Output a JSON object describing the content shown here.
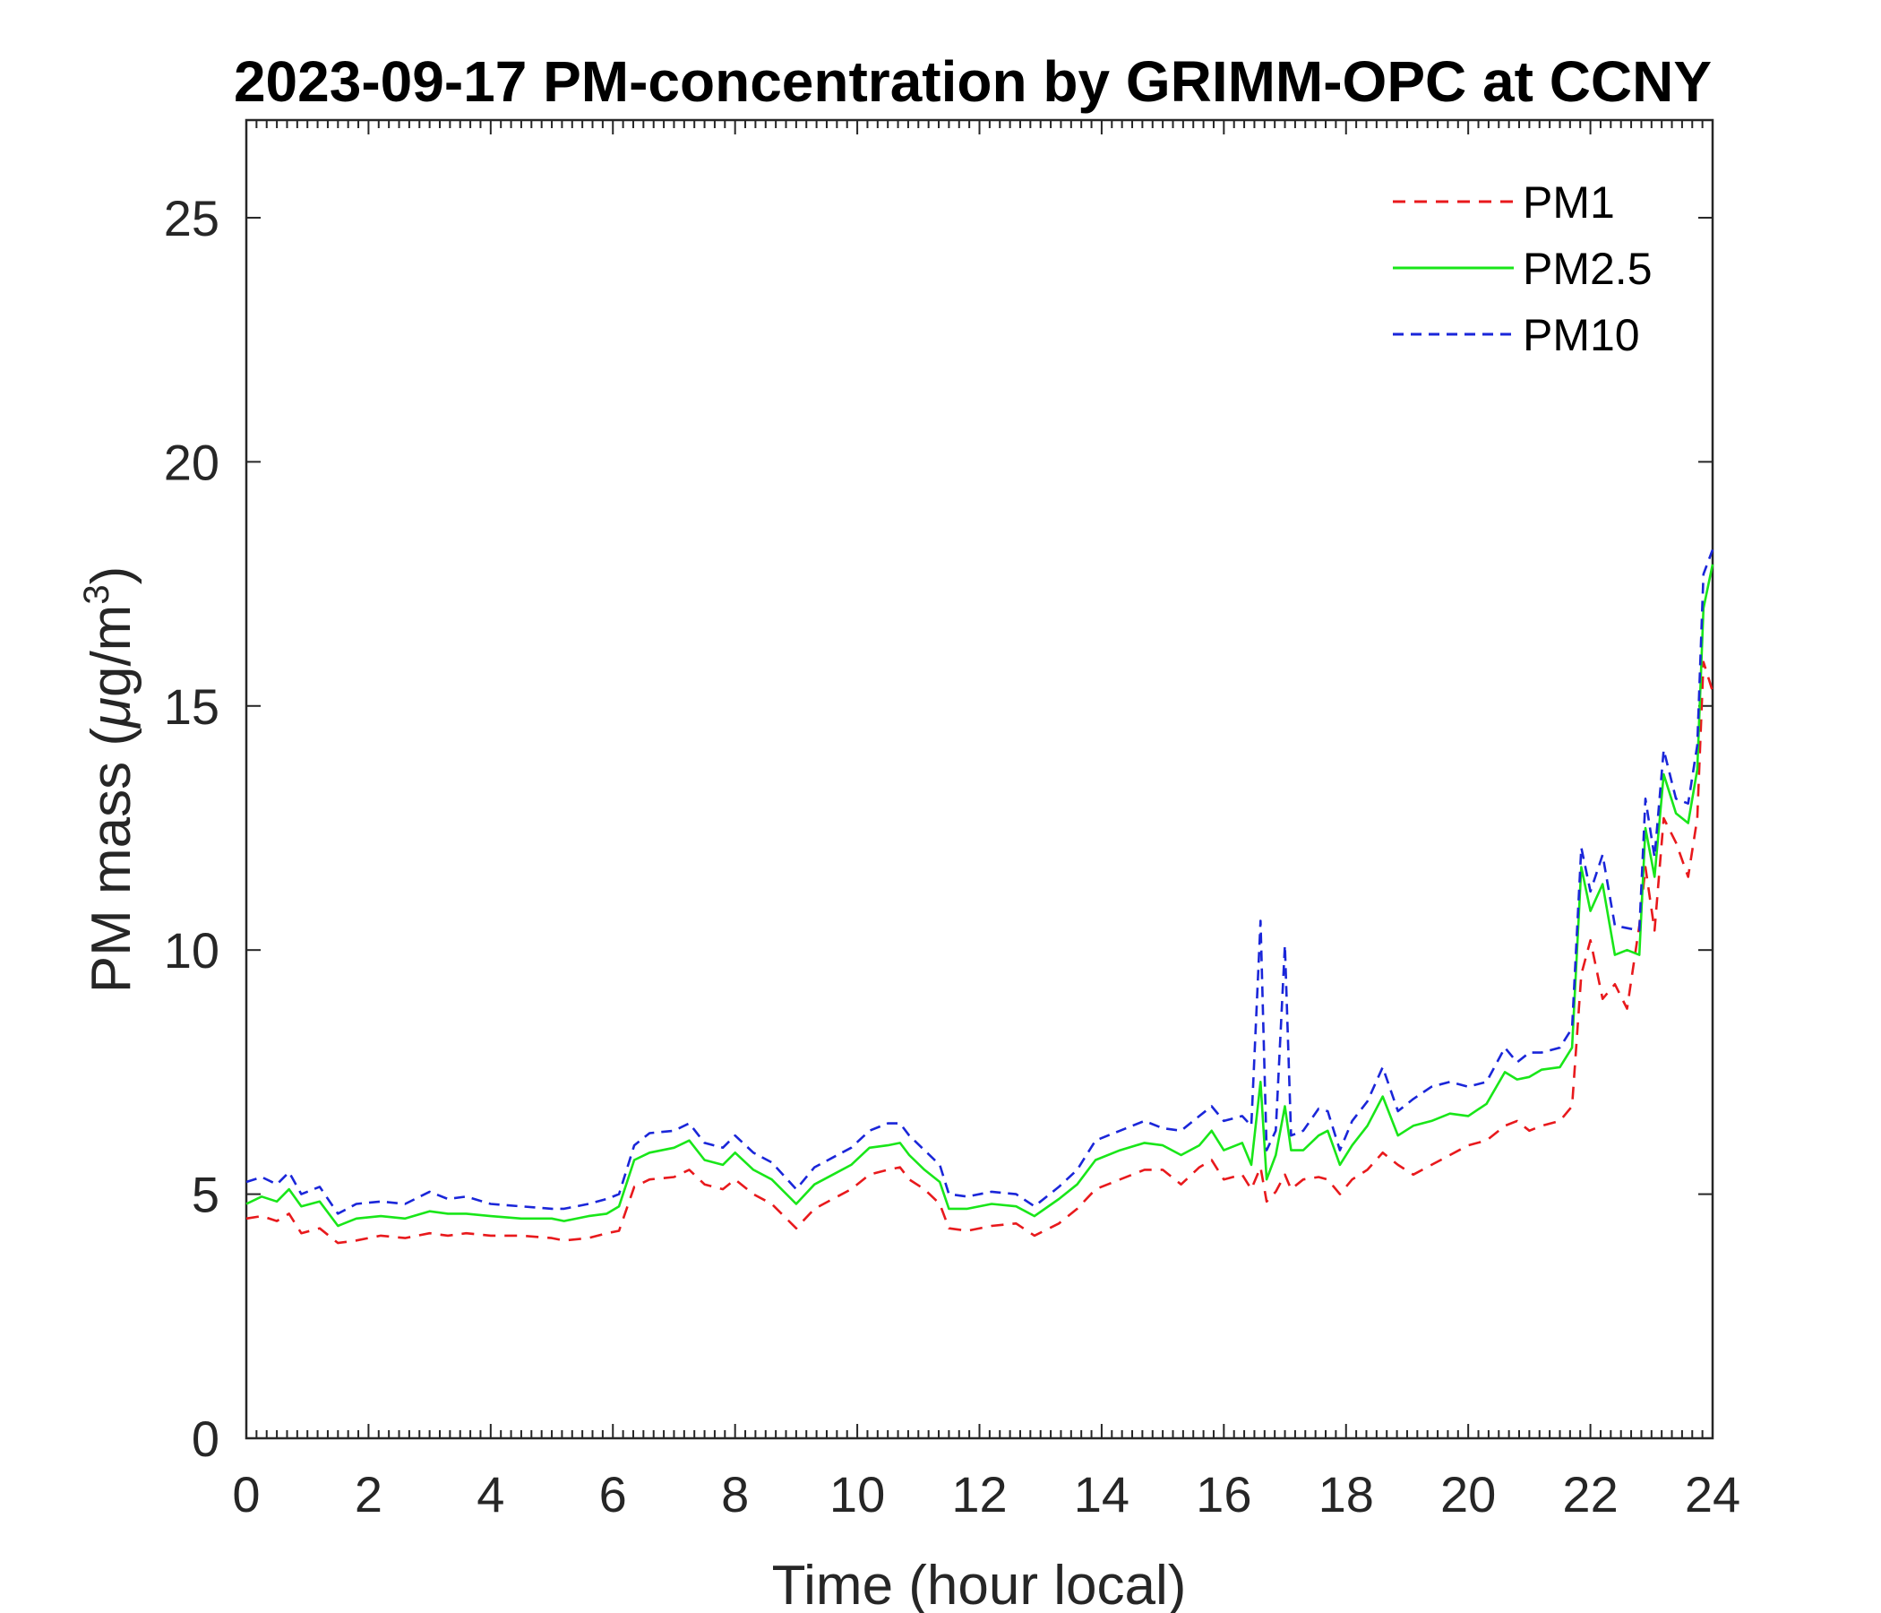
{
  "chart_data": {
    "type": "line",
    "title": "2023-09-17 PM-concentration by GRIMM-OPC at CCNY",
    "xlabel": "Time (hour local)",
    "ylabel_prefix": "PM mass (",
    "ylabel_mu": "μ",
    "ylabel_unit": "g/m",
    "ylabel_sup": "3",
    "ylabel_suffix": ")",
    "xlim": [
      0,
      24
    ],
    "ylim": [
      0,
      27
    ],
    "xticks": [
      0,
      2,
      4,
      6,
      8,
      10,
      12,
      14,
      16,
      18,
      20,
      22,
      24
    ],
    "xtick_labels": [
      "0",
      "2",
      "4",
      "6",
      "8",
      "10",
      "12",
      "14",
      "16",
      "18",
      "20",
      "22",
      "24"
    ],
    "yticks": [
      0,
      5,
      10,
      15,
      20,
      25
    ],
    "ytick_labels": [
      "0",
      "5",
      "10",
      "15",
      "20",
      "25"
    ],
    "grid": false,
    "legend_position": "top-right",
    "x": [
      0.0,
      0.25,
      0.5,
      0.7,
      0.9,
      1.2,
      1.5,
      1.8,
      2.2,
      2.6,
      3.0,
      3.3,
      3.6,
      4.0,
      4.5,
      5.0,
      5.2,
      5.6,
      5.9,
      6.1,
      6.35,
      6.6,
      7.0,
      7.25,
      7.5,
      7.8,
      8.0,
      8.3,
      8.6,
      9.0,
      9.3,
      9.6,
      9.9,
      10.2,
      10.5,
      10.7,
      10.85,
      11.1,
      11.35,
      11.5,
      11.8,
      12.2,
      12.6,
      12.9,
      13.3,
      13.6,
      13.9,
      14.3,
      14.7,
      15.0,
      15.3,
      15.6,
      15.8,
      16.0,
      16.3,
      16.45,
      16.6,
      16.7,
      16.85,
      17.0,
      17.1,
      17.3,
      17.55,
      17.7,
      17.9,
      18.1,
      18.35,
      18.6,
      18.85,
      19.1,
      19.4,
      19.7,
      20.0,
      20.3,
      20.6,
      20.8,
      21.0,
      21.2,
      21.5,
      21.7,
      21.85,
      22.0,
      22.2,
      22.4,
      22.6,
      22.8,
      22.9,
      23.05,
      23.2,
      23.4,
      23.6,
      23.75,
      23.85,
      24.0
    ],
    "series": [
      {
        "name": "PM1",
        "color": "#e8191c",
        "dash": "14,10",
        "values": [
          4.5,
          4.55,
          4.45,
          4.6,
          4.2,
          4.3,
          4.0,
          4.05,
          4.15,
          4.1,
          4.2,
          4.15,
          4.2,
          4.15,
          4.15,
          4.1,
          4.05,
          4.1,
          4.2,
          4.25,
          5.15,
          5.3,
          5.35,
          5.5,
          5.2,
          5.1,
          5.3,
          5.0,
          4.8,
          4.3,
          4.7,
          4.9,
          5.1,
          5.4,
          5.5,
          5.55,
          5.3,
          5.1,
          4.8,
          4.3,
          4.25,
          4.35,
          4.4,
          4.15,
          4.4,
          4.7,
          5.1,
          5.3,
          5.5,
          5.5,
          5.2,
          5.55,
          5.7,
          5.3,
          5.4,
          5.1,
          5.55,
          4.85,
          5.05,
          5.4,
          5.1,
          5.3,
          5.35,
          5.3,
          5.0,
          5.3,
          5.5,
          5.85,
          5.6,
          5.4,
          5.6,
          5.8,
          6.0,
          6.1,
          6.4,
          6.5,
          6.3,
          6.4,
          6.5,
          6.8,
          9.5,
          10.2,
          9.0,
          9.3,
          8.8,
          10.5,
          11.7,
          10.4,
          12.7,
          12.2,
          11.5,
          12.7,
          15.9,
          15.3
        ]
      },
      {
        "name": "PM2.5",
        "color": "#19e619",
        "dash": "",
        "values": [
          4.8,
          4.95,
          4.85,
          5.1,
          4.75,
          4.85,
          4.35,
          4.5,
          4.55,
          4.5,
          4.65,
          4.6,
          4.6,
          4.55,
          4.5,
          4.5,
          4.45,
          4.55,
          4.6,
          4.75,
          5.7,
          5.85,
          5.95,
          6.1,
          5.7,
          5.6,
          5.85,
          5.5,
          5.3,
          4.8,
          5.2,
          5.4,
          5.6,
          5.95,
          6.0,
          6.05,
          5.8,
          5.5,
          5.25,
          4.7,
          4.7,
          4.8,
          4.75,
          4.55,
          4.9,
          5.2,
          5.7,
          5.9,
          6.05,
          6.0,
          5.8,
          6.0,
          6.3,
          5.9,
          6.05,
          5.6,
          7.3,
          5.3,
          5.8,
          6.8,
          5.9,
          5.9,
          6.2,
          6.3,
          5.6,
          6.0,
          6.4,
          7.0,
          6.2,
          6.4,
          6.5,
          6.65,
          6.6,
          6.85,
          7.5,
          7.35,
          7.4,
          7.55,
          7.6,
          8.0,
          11.7,
          10.8,
          11.35,
          9.9,
          10.0,
          9.9,
          12.5,
          11.5,
          13.6,
          12.8,
          12.6,
          13.7,
          17.0,
          17.9
        ]
      },
      {
        "name": "PM10",
        "color": "#1a26d9",
        "dash": "12,8",
        "values": [
          5.25,
          5.35,
          5.2,
          5.45,
          5.0,
          5.15,
          4.6,
          4.8,
          4.85,
          4.8,
          5.05,
          4.9,
          4.95,
          4.8,
          4.75,
          4.7,
          4.7,
          4.8,
          4.9,
          5.0,
          6.0,
          6.25,
          6.3,
          6.45,
          6.05,
          5.95,
          6.2,
          5.85,
          5.65,
          5.1,
          5.55,
          5.75,
          5.95,
          6.3,
          6.45,
          6.45,
          6.2,
          5.9,
          5.6,
          5.0,
          4.95,
          5.05,
          5.0,
          4.75,
          5.15,
          5.5,
          6.1,
          6.3,
          6.5,
          6.35,
          6.3,
          6.6,
          6.8,
          6.5,
          6.6,
          6.4,
          10.6,
          5.9,
          6.3,
          10.1,
          6.2,
          6.3,
          6.75,
          6.7,
          5.9,
          6.5,
          6.9,
          7.6,
          6.7,
          6.95,
          7.2,
          7.3,
          7.2,
          7.3,
          8.0,
          7.7,
          7.9,
          7.9,
          8.0,
          8.4,
          12.1,
          11.2,
          11.95,
          10.5,
          10.45,
          10.4,
          13.1,
          11.9,
          14.1,
          13.1,
          13.0,
          14.2,
          17.7,
          18.2
        ]
      }
    ]
  }
}
